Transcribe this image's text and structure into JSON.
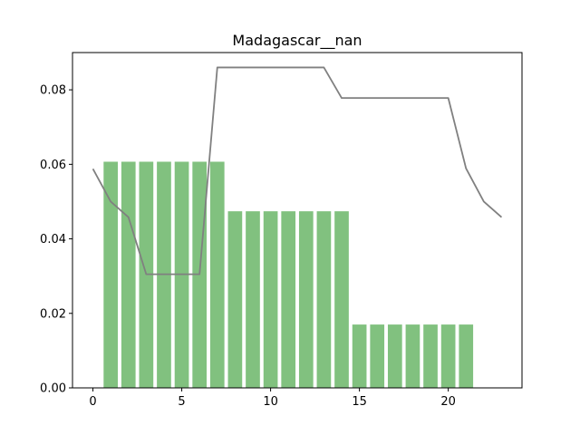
{
  "chart_data": {
    "type": "bar",
    "title": "Madagascar__nan",
    "xlabel": "",
    "ylabel": "",
    "xlim": [
      -1.15,
      24.15
    ],
    "ylim": [
      0,
      0.09
    ],
    "x_ticks": [
      0,
      5,
      10,
      15,
      20
    ],
    "y_ticks": [
      0.0,
      0.02,
      0.04,
      0.06,
      0.08
    ],
    "y_tick_labels": [
      "0.00",
      "0.02",
      "0.04",
      "0.06",
      "0.08"
    ],
    "grid": false,
    "bar_color": "#81c17f",
    "line_color": "#808080",
    "bars": {
      "x": [
        1,
        2,
        3,
        4,
        5,
        6,
        7,
        8,
        9,
        10,
        11,
        12,
        13,
        14,
        15,
        16,
        17,
        18,
        19,
        20,
        21
      ],
      "values": [
        0.0607,
        0.0607,
        0.0607,
        0.0607,
        0.0607,
        0.0607,
        0.0607,
        0.0474,
        0.0474,
        0.0474,
        0.0474,
        0.0474,
        0.0474,
        0.0474,
        0.017,
        0.017,
        0.017,
        0.017,
        0.017,
        0.017,
        0.017
      ]
    },
    "line": {
      "x": [
        0,
        1,
        2,
        3,
        4,
        5,
        6,
        7,
        8,
        9,
        10,
        11,
        12,
        13,
        14,
        15,
        16,
        17,
        18,
        19,
        20,
        21,
        22,
        23
      ],
      "values": [
        0.0588,
        0.05,
        0.0458,
        0.0305,
        0.0305,
        0.0305,
        0.0305,
        0.086,
        0.086,
        0.086,
        0.086,
        0.086,
        0.086,
        0.086,
        0.0778,
        0.0778,
        0.0778,
        0.0778,
        0.0778,
        0.0778,
        0.0778,
        0.0589,
        0.05,
        0.0458
      ]
    }
  }
}
